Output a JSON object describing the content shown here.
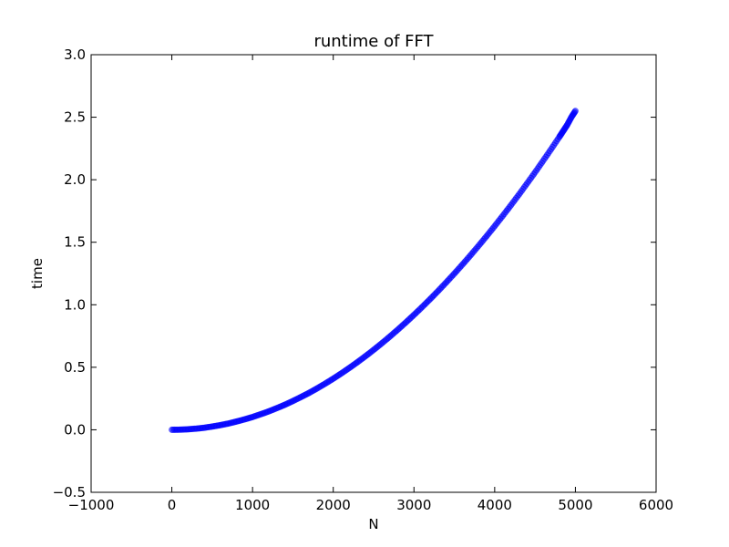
{
  "chart_data": {
    "type": "scatter",
    "title": "runtime of FFT",
    "xlabel": "N",
    "ylabel": "time",
    "xlim": [
      -1000,
      6000
    ],
    "ylim": [
      -0.5,
      3.0
    ],
    "xticks": [
      -1000,
      0,
      1000,
      2000,
      3000,
      4000,
      5000,
      6000
    ],
    "xtick_labels": [
      "−1000",
      "0",
      "1000",
      "2000",
      "3000",
      "4000",
      "5000",
      "6000"
    ],
    "yticks": [
      -0.5,
      0.0,
      0.5,
      1.0,
      1.5,
      2.0,
      2.5,
      3.0
    ],
    "ytick_labels": [
      "−0.5",
      "0.0",
      "0.5",
      "1.0",
      "1.5",
      "2.0",
      "2.5",
      "3.0"
    ],
    "grid": false,
    "legend": "none",
    "marker_color": "#0000ff",
    "marker_opacity": 0.5,
    "series": [
      {
        "x": [
          0,
          100,
          200,
          300,
          400,
          500,
          600,
          700,
          800,
          900,
          1000,
          1100,
          1200,
          1300,
          1400,
          1500,
          1600,
          1700,
          1800,
          1900,
          2000,
          2100,
          2200,
          2300,
          2400,
          2500,
          2600,
          2700,
          2800,
          2900,
          3000,
          3100,
          3200,
          3300,
          3400,
          3500,
          3600,
          3700,
          3800,
          3900,
          4000,
          4100,
          4200,
          4300,
          4400,
          4500,
          4600,
          4700,
          4800,
          4850,
          4900,
          4950,
          5000
        ],
        "y": [
          0.0,
          0.001,
          0.004,
          0.009,
          0.016,
          0.026,
          0.037,
          0.05,
          0.066,
          0.083,
          0.102,
          0.124,
          0.147,
          0.173,
          0.2,
          0.23,
          0.262,
          0.295,
          0.331,
          0.369,
          0.409,
          0.451,
          0.495,
          0.541,
          0.589,
          0.639,
          0.691,
          0.745,
          0.801,
          0.859,
          0.919,
          0.981,
          1.045,
          1.111,
          1.179,
          1.249,
          1.321,
          1.395,
          1.471,
          1.549,
          1.629,
          1.711,
          1.795,
          1.881,
          1.969,
          2.059,
          2.151,
          2.245,
          2.341,
          2.39,
          2.44,
          2.5,
          2.55
        ]
      }
    ]
  }
}
